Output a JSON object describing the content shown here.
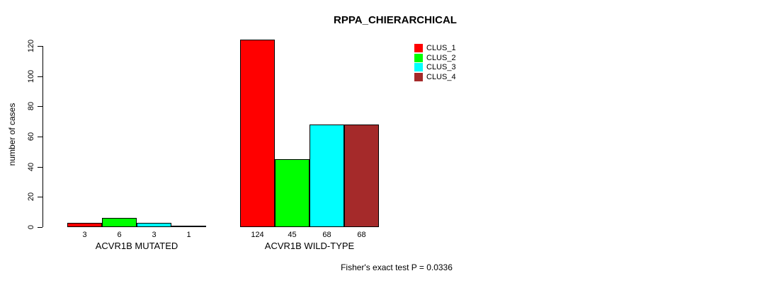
{
  "chart_data": {
    "type": "bar",
    "title": "RPPA_CHIERARCHICAL",
    "ylabel": "number of cases",
    "xlabel": "",
    "ylim": [
      0,
      120
    ],
    "yticks": [
      0,
      20,
      40,
      60,
      80,
      100,
      120
    ],
    "grid": false,
    "legend_position": "top-right",
    "categories": [
      "ACVR1B MUTATED",
      "ACVR1B WILD-TYPE"
    ],
    "series": [
      {
        "name": "CLUS_1",
        "color": "#FF0000",
        "values": [
          3,
          124
        ]
      },
      {
        "name": "CLUS_2",
        "color": "#00FF00",
        "values": [
          6,
          45
        ]
      },
      {
        "name": "CLUS_3",
        "color": "#00FFFF",
        "values": [
          3,
          68
        ]
      },
      {
        "name": "CLUS_4",
        "color": "#A52A2A",
        "values": [
          1,
          68
        ]
      }
    ],
    "bar_value_labels": [
      [
        "3",
        "6",
        "3",
        "1"
      ],
      [
        "124",
        "45",
        "68",
        "68"
      ]
    ],
    "annotation": "Fisher's exact test P = 0.0336"
  }
}
